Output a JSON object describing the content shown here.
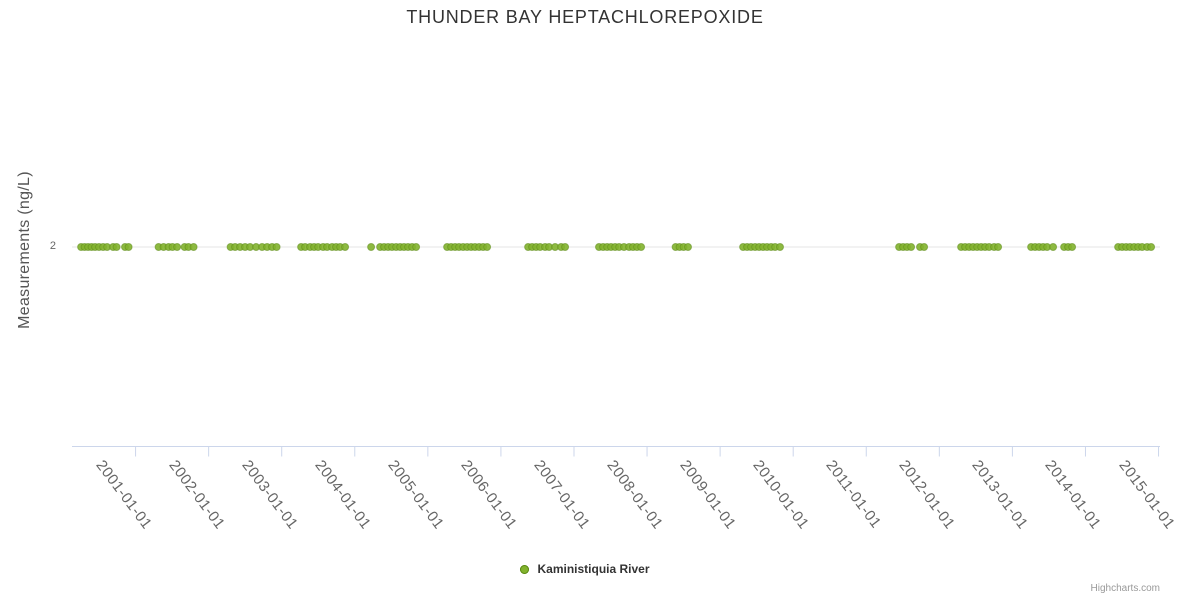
{
  "chart_data": {
    "type": "scatter",
    "title": "THUNDER BAY HEPTACHLOREPOXIDE",
    "ylabel": "Measurements (ng/L)",
    "xlabel": "",
    "grid": "single-horizontal-gridline-at-y-2",
    "legend_position": "bottom-center",
    "credits": "Highcharts.com",
    "x_axis": {
      "min_decimal_year": 2000.13,
      "max_decimal_year": 2015.02,
      "tick_labels": [
        "2001-01-01",
        "2002-01-01",
        "2003-01-01",
        "2004-01-01",
        "2005-01-01",
        "2006-01-01",
        "2007-01-01",
        "2008-01-01",
        "2009-01-01",
        "2010-01-01",
        "2011-01-01",
        "2012-01-01",
        "2013-01-01",
        "2014-01-01",
        "2015-01-01"
      ]
    },
    "y_axis": {
      "ticks": [
        {
          "value": 2,
          "label": "2"
        }
      ]
    },
    "series": [
      {
        "name": "Kaministiquia River",
        "color": "#82b32d",
        "marker_stroke": "#5c8a17",
        "y_value": 2,
        "x_decimal_years": [
          2000.254,
          2000.302,
          2000.35,
          2000.398,
          2000.446,
          2000.5,
          2000.555,
          2000.61,
          2000.692,
          2000.74,
          2000.856,
          2000.904,
          2001.315,
          2001.383,
          2001.452,
          2001.506,
          2001.568,
          2001.671,
          2001.725,
          2001.794,
          2002.3,
          2002.362,
          2002.43,
          2002.499,
          2002.567,
          2002.649,
          2002.731,
          2002.8,
          2002.868,
          2002.93,
          2003.265,
          2003.32,
          2003.388,
          2003.443,
          2003.498,
          2003.566,
          2003.621,
          2003.689,
          2003.744,
          2003.799,
          2003.867,
          2004.223,
          2004.346,
          2004.401,
          2004.456,
          2004.51,
          2004.565,
          2004.62,
          2004.674,
          2004.729,
          2004.784,
          2004.839,
          2005.263,
          2005.318,
          2005.373,
          2005.427,
          2005.482,
          2005.537,
          2005.592,
          2005.646,
          2005.701,
          2005.756,
          2005.811,
          2006.372,
          2006.427,
          2006.481,
          2006.536,
          2006.605,
          2006.659,
          2006.741,
          2006.823,
          2006.878,
          2007.343,
          2007.398,
          2007.453,
          2007.507,
          2007.562,
          2007.617,
          2007.685,
          2007.754,
          2007.808,
          2007.863,
          2007.918,
          2008.39,
          2008.445,
          2008.5,
          2008.561,
          2009.314,
          2009.369,
          2009.423,
          2009.478,
          2009.533,
          2009.588,
          2009.642,
          2009.697,
          2009.752,
          2009.82,
          2011.449,
          2011.504,
          2011.558,
          2011.613,
          2011.736,
          2011.791,
          2012.298,
          2012.352,
          2012.407,
          2012.462,
          2012.517,
          2012.571,
          2012.626,
          2012.681,
          2012.749,
          2012.804,
          2013.256,
          2013.31,
          2013.365,
          2013.42,
          2013.475,
          2013.557,
          2013.707,
          2013.762,
          2013.817,
          2014.446,
          2014.501,
          2014.556,
          2014.61,
          2014.665,
          2014.72,
          2014.775,
          2014.843,
          2014.898
        ]
      }
    ]
  },
  "colors": {
    "title": "#333333",
    "axis_title": "#555555",
    "axis_label": "#666666",
    "gridline": "#e6e6e6",
    "axis_line": "#ccd6eb",
    "tick_mark": "#ccd6eb",
    "legend_text": "#333333",
    "credits": "#999999",
    "background": "#ffffff"
  }
}
